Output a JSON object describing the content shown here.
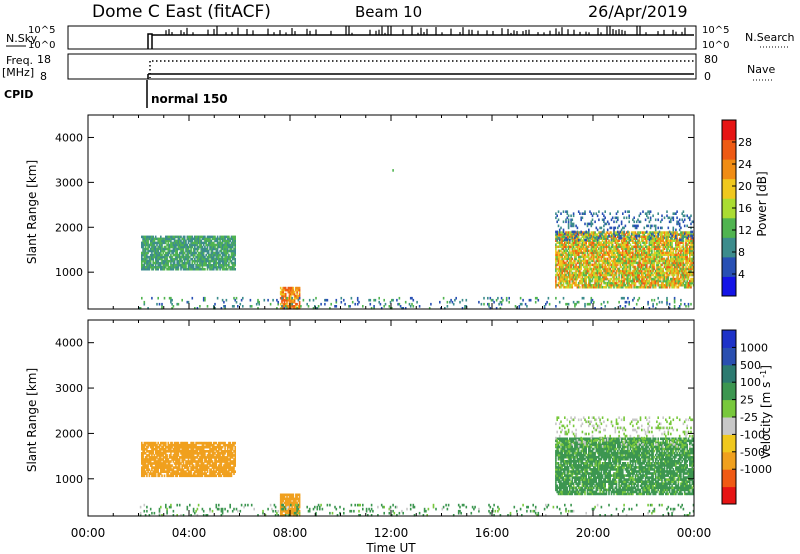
{
  "header": {
    "station": "Dome C East (fitACF)",
    "beam": "Beam 10",
    "date": "26/Apr/2019"
  },
  "panels": {
    "sky": {
      "label": "N.Sky",
      "tick_high": "10^5",
      "tick_low": "10^0",
      "right_high": "10^5",
      "right_low": "10^0",
      "right_label": "N.Search"
    },
    "freq": {
      "label_line1": "Freq.",
      "label_line2": "[MHz]",
      "tick_high": "18",
      "tick_low": "8",
      "right_high": "80",
      "right_low": "0",
      "right_label": "Nave"
    },
    "cpid": {
      "label": "CPID",
      "mode": "normal 150"
    }
  },
  "chart_data": [
    {
      "type": "heatmap",
      "title": "",
      "xlabel": "",
      "ylabel": "Slant Range [km]",
      "xlim": [
        "00:00",
        "24:00"
      ],
      "ylim": [
        180,
        4500
      ],
      "yticks": [
        1000,
        2000,
        3000,
        4000
      ],
      "colorbar": {
        "label": "Power [dB]",
        "ticks": [
          4,
          8,
          12,
          16,
          20,
          24,
          28
        ],
        "range": [
          0,
          32
        ]
      },
      "regions": [
        {
          "t": [
            2.1,
            5.8
          ],
          "range": [
            1050,
            1800
          ],
          "value_range": [
            8,
            16
          ],
          "note": "patchy"
        },
        {
          "t": [
            7.6,
            8.4
          ],
          "range": [
            180,
            650
          ],
          "value_range": [
            20,
            32
          ]
        },
        {
          "t": [
            18.5,
            24.0
          ],
          "range": [
            650,
            1900
          ],
          "value_range": [
            12,
            30
          ]
        },
        {
          "t": [
            18.5,
            24.0
          ],
          "range": [
            1700,
            2350
          ],
          "value_range": [
            4,
            12
          ],
          "note": "sparse"
        },
        {
          "t": [
            2.0,
            24.0
          ],
          "range": [
            180,
            450
          ],
          "value_range": [
            4,
            16
          ],
          "note": "sparse near range"
        },
        {
          "t": [
            12.0,
            12.1
          ],
          "range": [
            3250,
            3290
          ],
          "value_range": [
            12,
            16
          ]
        }
      ]
    },
    {
      "type": "heatmap",
      "title": "",
      "xlabel": "Time UT",
      "ylabel": "Slant Range [km]",
      "xlim": [
        "00:00",
        "24:00"
      ],
      "xticks": [
        "00:00",
        "04:00",
        "08:00",
        "12:00",
        "16:00",
        "20:00",
        "00:00"
      ],
      "ylim": [
        180,
        4500
      ],
      "yticks": [
        1000,
        2000,
        3000,
        4000
      ],
      "colorbar": {
        "label": "Velocity [m s^-1]",
        "ticks": [
          1000,
          500,
          100,
          25,
          -25,
          -100,
          -500,
          -1000
        ]
      },
      "regions": [
        {
          "t": [
            2.1,
            5.8
          ],
          "range": [
            1050,
            1800
          ],
          "value_range": [
            -500,
            -100
          ]
        },
        {
          "t": [
            7.6,
            8.4
          ],
          "range": [
            180,
            650
          ],
          "value_range": [
            -500,
            -100
          ]
        },
        {
          "t": [
            18.5,
            24.0
          ],
          "range": [
            650,
            1900
          ],
          "value_range": [
            25,
            500
          ]
        },
        {
          "t": [
            18.5,
            24.0
          ],
          "range": [
            1700,
            2350
          ],
          "value_range": [
            -25,
            100
          ],
          "note": "sparse"
        },
        {
          "t": [
            2.0,
            24.0
          ],
          "range": [
            180,
            450
          ],
          "value_range": [
            -25,
            500
          ],
          "note": "sparse near range"
        }
      ]
    }
  ],
  "colors": {
    "power_scale": [
      "#1414e6",
      "#2850b4",
      "#3c8c8c",
      "#50b450",
      "#aadc32",
      "#f0c81e",
      "#f08c14",
      "#ee5a14",
      "#e61414"
    ],
    "velocity_scale": [
      "#e61414",
      "#f05a14",
      "#f0a01e",
      "#f0c81e",
      "#c8c8c8",
      "#78c83c",
      "#3c9650",
      "#2c7a70",
      "#2a4fb0",
      "#1e32c8"
    ]
  }
}
